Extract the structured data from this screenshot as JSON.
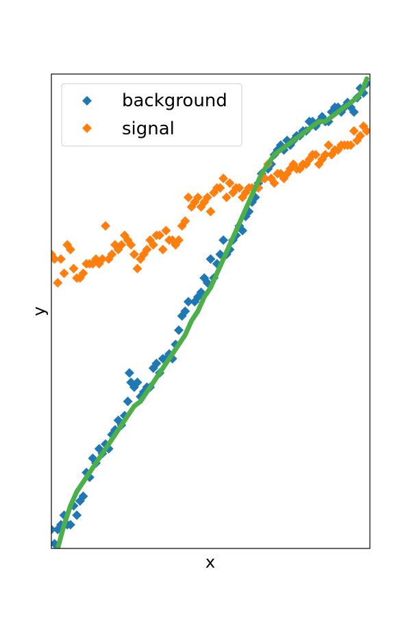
{
  "chart_data": {
    "type": "scatter",
    "xlabel": "x",
    "ylabel": "y",
    "xlim": [
      0,
      1
    ],
    "ylim": [
      0,
      1
    ],
    "grid": false,
    "legend": {
      "placement": "top-left"
    },
    "series": [
      {
        "name": "background",
        "kind": "scatter",
        "marker": "diamond",
        "color": "#1f77b4",
        "points": [
          [
            0.0,
            0.04
          ],
          [
            0.01,
            0.01
          ],
          [
            0.02,
            0.04
          ],
          [
            0.03,
            0.05
          ],
          [
            0.04,
            0.07
          ],
          [
            0.05,
            0.05
          ],
          [
            0.06,
            0.05
          ],
          [
            0.07,
            0.09
          ],
          [
            0.08,
            0.07
          ],
          [
            0.09,
            0.1
          ],
          [
            0.1,
            0.11
          ],
          [
            0.11,
            0.16
          ],
          [
            0.12,
            0.15
          ],
          [
            0.13,
            0.19
          ],
          [
            0.14,
            0.18
          ],
          [
            0.15,
            0.21
          ],
          [
            0.16,
            0.2
          ],
          [
            0.17,
            0.22
          ],
          [
            0.18,
            0.21
          ],
          [
            0.19,
            0.24
          ],
          [
            0.2,
            0.25
          ],
          [
            0.21,
            0.27
          ],
          [
            0.22,
            0.26
          ],
          [
            0.23,
            0.28
          ],
          [
            0.24,
            0.31
          ],
          [
            0.245,
            0.37
          ],
          [
            0.25,
            0.35
          ],
          [
            0.26,
            0.34
          ],
          [
            0.27,
            0.35
          ],
          [
            0.28,
            0.32
          ],
          [
            0.29,
            0.33
          ],
          [
            0.3,
            0.34
          ],
          [
            0.31,
            0.34
          ],
          [
            0.32,
            0.38
          ],
          [
            0.33,
            0.39
          ],
          [
            0.34,
            0.37
          ],
          [
            0.35,
            0.4
          ],
          [
            0.36,
            0.4
          ],
          [
            0.37,
            0.41
          ],
          [
            0.38,
            0.4
          ],
          [
            0.39,
            0.43
          ],
          [
            0.4,
            0.46
          ],
          [
            0.41,
            0.49
          ],
          [
            0.42,
            0.5
          ],
          [
            0.43,
            0.52
          ],
          [
            0.45,
            0.52
          ],
          [
            0.46,
            0.53
          ],
          [
            0.47,
            0.54
          ],
          [
            0.48,
            0.57
          ],
          [
            0.49,
            0.56
          ],
          [
            0.5,
            0.61
          ],
          [
            0.51,
            0.57
          ],
          [
            0.52,
            0.6
          ],
          [
            0.53,
            0.62
          ],
          [
            0.54,
            0.65
          ],
          [
            0.55,
            0.62
          ],
          [
            0.56,
            0.63
          ],
          [
            0.57,
            0.65
          ],
          [
            0.58,
            0.66
          ],
          [
            0.59,
            0.68
          ],
          [
            0.6,
            0.67
          ],
          [
            0.61,
            0.7
          ],
          [
            0.62,
            0.71
          ],
          [
            0.63,
            0.73
          ],
          [
            0.64,
            0.74
          ],
          [
            0.65,
            0.77
          ],
          [
            0.66,
            0.79
          ],
          [
            0.67,
            0.78
          ],
          [
            0.68,
            0.8
          ],
          [
            0.69,
            0.81
          ],
          [
            0.7,
            0.83
          ],
          [
            0.71,
            0.84
          ],
          [
            0.72,
            0.85
          ],
          [
            0.73,
            0.84
          ],
          [
            0.74,
            0.86
          ],
          [
            0.75,
            0.85
          ],
          [
            0.76,
            0.86
          ],
          [
            0.77,
            0.87
          ],
          [
            0.78,
            0.87
          ],
          [
            0.79,
            0.88
          ],
          [
            0.8,
            0.88
          ],
          [
            0.81,
            0.9
          ],
          [
            0.82,
            0.9
          ],
          [
            0.83,
            0.89
          ],
          [
            0.84,
            0.9
          ],
          [
            0.85,
            0.91
          ],
          [
            0.86,
            0.9
          ],
          [
            0.87,
            0.9
          ],
          [
            0.88,
            0.92
          ],
          [
            0.89,
            0.93
          ],
          [
            0.9,
            0.93
          ],
          [
            0.91,
            0.92
          ],
          [
            0.92,
            0.93
          ],
          [
            0.93,
            0.94
          ],
          [
            0.94,
            0.93
          ],
          [
            0.95,
            0.92
          ],
          [
            0.96,
            0.95
          ],
          [
            0.97,
            0.97
          ],
          [
            0.98,
            0.96
          ],
          [
            0.99,
            0.98
          ]
        ]
      },
      {
        "name": "signal",
        "kind": "scatter",
        "marker": "diamond",
        "color": "#ff7f0e",
        "points": [
          [
            0.0,
            0.62
          ],
          [
            0.01,
            0.61
          ],
          [
            0.02,
            0.56
          ],
          [
            0.03,
            0.61
          ],
          [
            0.04,
            0.58
          ],
          [
            0.05,
            0.64
          ],
          [
            0.06,
            0.63
          ],
          [
            0.07,
            0.59
          ],
          [
            0.08,
            0.57
          ],
          [
            0.09,
            0.57
          ],
          [
            0.1,
            0.58
          ],
          [
            0.11,
            0.6
          ],
          [
            0.12,
            0.6
          ],
          [
            0.13,
            0.6
          ],
          [
            0.14,
            0.61
          ],
          [
            0.15,
            0.6
          ],
          [
            0.16,
            0.61
          ],
          [
            0.17,
            0.68
          ],
          [
            0.18,
            0.61
          ],
          [
            0.19,
            0.62
          ],
          [
            0.2,
            0.64
          ],
          [
            0.21,
            0.63
          ],
          [
            0.22,
            0.64
          ],
          [
            0.23,
            0.66
          ],
          [
            0.24,
            0.65
          ],
          [
            0.25,
            0.64
          ],
          [
            0.26,
            0.62
          ],
          [
            0.27,
            0.59
          ],
          [
            0.28,
            0.61
          ],
          [
            0.29,
            0.62
          ],
          [
            0.3,
            0.63
          ],
          [
            0.31,
            0.65
          ],
          [
            0.32,
            0.64
          ],
          [
            0.33,
            0.66
          ],
          [
            0.34,
            0.66
          ],
          [
            0.35,
            0.63
          ],
          [
            0.36,
            0.67
          ],
          [
            0.37,
            0.65
          ],
          [
            0.38,
            0.65
          ],
          [
            0.39,
            0.64
          ],
          [
            0.4,
            0.65
          ],
          [
            0.41,
            0.68
          ],
          [
            0.42,
            0.69
          ],
          [
            0.43,
            0.74
          ],
          [
            0.44,
            0.72
          ],
          [
            0.45,
            0.73
          ],
          [
            0.46,
            0.74
          ],
          [
            0.47,
            0.72
          ],
          [
            0.48,
            0.73
          ],
          [
            0.49,
            0.74
          ],
          [
            0.5,
            0.71
          ],
          [
            0.51,
            0.75
          ],
          [
            0.52,
            0.76
          ],
          [
            0.53,
            0.76
          ],
          [
            0.54,
            0.78
          ],
          [
            0.55,
            0.74
          ],
          [
            0.56,
            0.77
          ],
          [
            0.57,
            0.75
          ],
          [
            0.58,
            0.76
          ],
          [
            0.59,
            0.76
          ],
          [
            0.6,
            0.74
          ],
          [
            0.61,
            0.75
          ],
          [
            0.62,
            0.76
          ],
          [
            0.63,
            0.76
          ],
          [
            0.64,
            0.76
          ],
          [
            0.65,
            0.76
          ],
          [
            0.66,
            0.78
          ],
          [
            0.67,
            0.78
          ],
          [
            0.68,
            0.81
          ],
          [
            0.69,
            0.78
          ],
          [
            0.7,
            0.77
          ],
          [
            0.71,
            0.79
          ],
          [
            0.72,
            0.79
          ],
          [
            0.73,
            0.78
          ],
          [
            0.74,
            0.79
          ],
          [
            0.75,
            0.8
          ],
          [
            0.76,
            0.81
          ],
          [
            0.77,
            0.8
          ],
          [
            0.78,
            0.8
          ],
          [
            0.79,
            0.81
          ],
          [
            0.8,
            0.81
          ],
          [
            0.81,
            0.82
          ],
          [
            0.82,
            0.83
          ],
          [
            0.83,
            0.83
          ],
          [
            0.84,
            0.81
          ],
          [
            0.85,
            0.82
          ],
          [
            0.86,
            0.83
          ],
          [
            0.87,
            0.85
          ],
          [
            0.88,
            0.83
          ],
          [
            0.89,
            0.84
          ],
          [
            0.9,
            0.84
          ],
          [
            0.91,
            0.85
          ],
          [
            0.92,
            0.85
          ],
          [
            0.93,
            0.85
          ],
          [
            0.94,
            0.85
          ],
          [
            0.95,
            0.88
          ],
          [
            0.96,
            0.86
          ],
          [
            0.97,
            0.87
          ],
          [
            0.98,
            0.89
          ],
          [
            0.99,
            0.88
          ]
        ]
      },
      {
        "kind": "line",
        "color": "#4daf4a",
        "points": [
          [
            0.02,
            0.0
          ],
          [
            0.04,
            0.05
          ],
          [
            0.06,
            0.09
          ],
          [
            0.08,
            0.12
          ],
          [
            0.1,
            0.14
          ],
          [
            0.12,
            0.16
          ],
          [
            0.14,
            0.18
          ],
          [
            0.16,
            0.2
          ],
          [
            0.18,
            0.22
          ],
          [
            0.2,
            0.24
          ],
          [
            0.22,
            0.26
          ],
          [
            0.24,
            0.28
          ],
          [
            0.26,
            0.3
          ],
          [
            0.28,
            0.31
          ],
          [
            0.3,
            0.33
          ],
          [
            0.32,
            0.35
          ],
          [
            0.34,
            0.37
          ],
          [
            0.36,
            0.39
          ],
          [
            0.38,
            0.41
          ],
          [
            0.4,
            0.43
          ],
          [
            0.42,
            0.45
          ],
          [
            0.44,
            0.48
          ],
          [
            0.46,
            0.5
          ],
          [
            0.48,
            0.53
          ],
          [
            0.5,
            0.55
          ],
          [
            0.52,
            0.58
          ],
          [
            0.54,
            0.61
          ],
          [
            0.56,
            0.64
          ],
          [
            0.58,
            0.67
          ],
          [
            0.6,
            0.7
          ],
          [
            0.62,
            0.73
          ],
          [
            0.64,
            0.76
          ],
          [
            0.66,
            0.79
          ],
          [
            0.68,
            0.81
          ],
          [
            0.7,
            0.83
          ],
          [
            0.72,
            0.84
          ],
          [
            0.74,
            0.85
          ],
          [
            0.76,
            0.86
          ],
          [
            0.78,
            0.87
          ],
          [
            0.8,
            0.88
          ],
          [
            0.82,
            0.89
          ],
          [
            0.84,
            0.9
          ],
          [
            0.86,
            0.9
          ],
          [
            0.88,
            0.91
          ],
          [
            0.9,
            0.92
          ],
          [
            0.92,
            0.93
          ],
          [
            0.94,
            0.94
          ],
          [
            0.96,
            0.95
          ],
          [
            0.98,
            0.97
          ],
          [
            0.99,
            0.99
          ]
        ]
      }
    ]
  }
}
